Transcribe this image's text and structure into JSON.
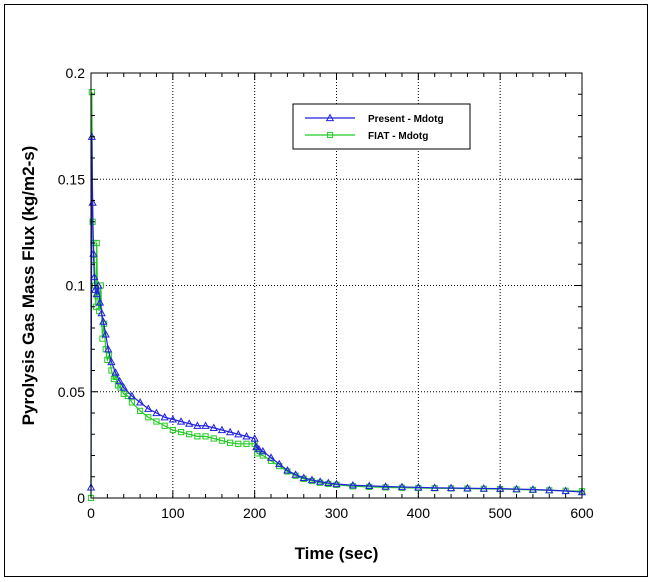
{
  "chart_data": {
    "type": "line",
    "xlabel": "Time (sec)",
    "ylabel": "Pyrolysis Gas Mass Flux  (kg/m2-s)",
    "xlim": [
      0,
      600
    ],
    "ylim": [
      0,
      0.2
    ],
    "x_ticks": [
      {
        "value": 0,
        "label": "0"
      },
      {
        "value": 100,
        "label": "100"
      },
      {
        "value": 200,
        "label": "200"
      },
      {
        "value": 300,
        "label": "300"
      },
      {
        "value": 400,
        "label": "400"
      },
      {
        "value": 500,
        "label": "500"
      },
      {
        "value": 600,
        "label": "600"
      }
    ],
    "y_ticks": [
      {
        "value": 0,
        "label": "0"
      },
      {
        "value": 0.05,
        "label": "0.05"
      },
      {
        "value": 0.1,
        "label": "0.1"
      },
      {
        "value": 0.15,
        "label": "0.15"
      },
      {
        "value": 0.2,
        "label": "0.2"
      }
    ],
    "grid": true,
    "legend_position": "top-right",
    "series": [
      {
        "name": "Present - Mdotg",
        "color": "#2222dd",
        "marker": "triangle",
        "x": [
          0,
          1,
          2,
          3,
          4,
          5,
          7,
          9,
          11,
          13,
          15,
          18,
          21,
          25,
          30,
          35,
          40,
          50,
          60,
          70,
          80,
          90,
          100,
          110,
          120,
          130,
          140,
          150,
          160,
          170,
          180,
          190,
          200,
          202,
          205,
          210,
          220,
          230,
          240,
          250,
          260,
          270,
          280,
          290,
          300,
          320,
          340,
          360,
          380,
          400,
          420,
          440,
          460,
          480,
          500,
          520,
          540,
          560,
          580,
          600
        ],
        "y": [
          0.005,
          0.17,
          0.139,
          0.115,
          0.104,
          0.098,
          0.096,
          0.1,
          0.092,
          0.087,
          0.083,
          0.077,
          0.07,
          0.064,
          0.059,
          0.055,
          0.052,
          0.048,
          0.045,
          0.042,
          0.04,
          0.038,
          0.037,
          0.036,
          0.035,
          0.034,
          0.034,
          0.033,
          0.032,
          0.031,
          0.03,
          0.029,
          0.028,
          0.024,
          0.023,
          0.022,
          0.019,
          0.016,
          0.013,
          0.011,
          0.0095,
          0.0085,
          0.0077,
          0.0071,
          0.0066,
          0.006,
          0.0057,
          0.0054,
          0.0052,
          0.005,
          0.0048,
          0.0047,
          0.0046,
          0.0045,
          0.0044,
          0.0042,
          0.004,
          0.0037,
          0.0033,
          0.0028
        ]
      },
      {
        "name": "FIAT - Mdotg",
        "color": "#22cc22",
        "marker": "square",
        "x": [
          0,
          1,
          2,
          3,
          4,
          5,
          6,
          7,
          8,
          10,
          12,
          14,
          16,
          18,
          20,
          22,
          25,
          28,
          30,
          33,
          36,
          40,
          45,
          50,
          60,
          70,
          80,
          90,
          100,
          110,
          120,
          130,
          140,
          150,
          160,
          170,
          180,
          190,
          200,
          203,
          210,
          220,
          230,
          240,
          250,
          260,
          270,
          280,
          290,
          300,
          320,
          340,
          360,
          380,
          400,
          420,
          440,
          460,
          480,
          500,
          520,
          540,
          560,
          580,
          600
        ],
        "y": [
          0.0,
          0.191,
          0.13,
          0.12,
          0.112,
          0.1,
          0.09,
          0.12,
          0.095,
          0.088,
          0.1,
          0.075,
          0.082,
          0.07,
          0.065,
          0.067,
          0.06,
          0.056,
          0.057,
          0.053,
          0.052,
          0.049,
          0.048,
          0.045,
          0.041,
          0.038,
          0.036,
          0.034,
          0.032,
          0.031,
          0.03,
          0.029,
          0.029,
          0.028,
          0.027,
          0.026,
          0.0255,
          0.0255,
          0.0255,
          0.021,
          0.02,
          0.0175,
          0.015,
          0.0125,
          0.0105,
          0.009,
          0.008,
          0.0072,
          0.0066,
          0.0062,
          0.0055,
          0.0052,
          0.005,
          0.0048,
          0.0047,
          0.0046,
          0.0045,
          0.0044,
          0.0043,
          0.0042,
          0.004,
          0.0038,
          0.0036,
          0.0034,
          0.0032
        ]
      }
    ]
  }
}
